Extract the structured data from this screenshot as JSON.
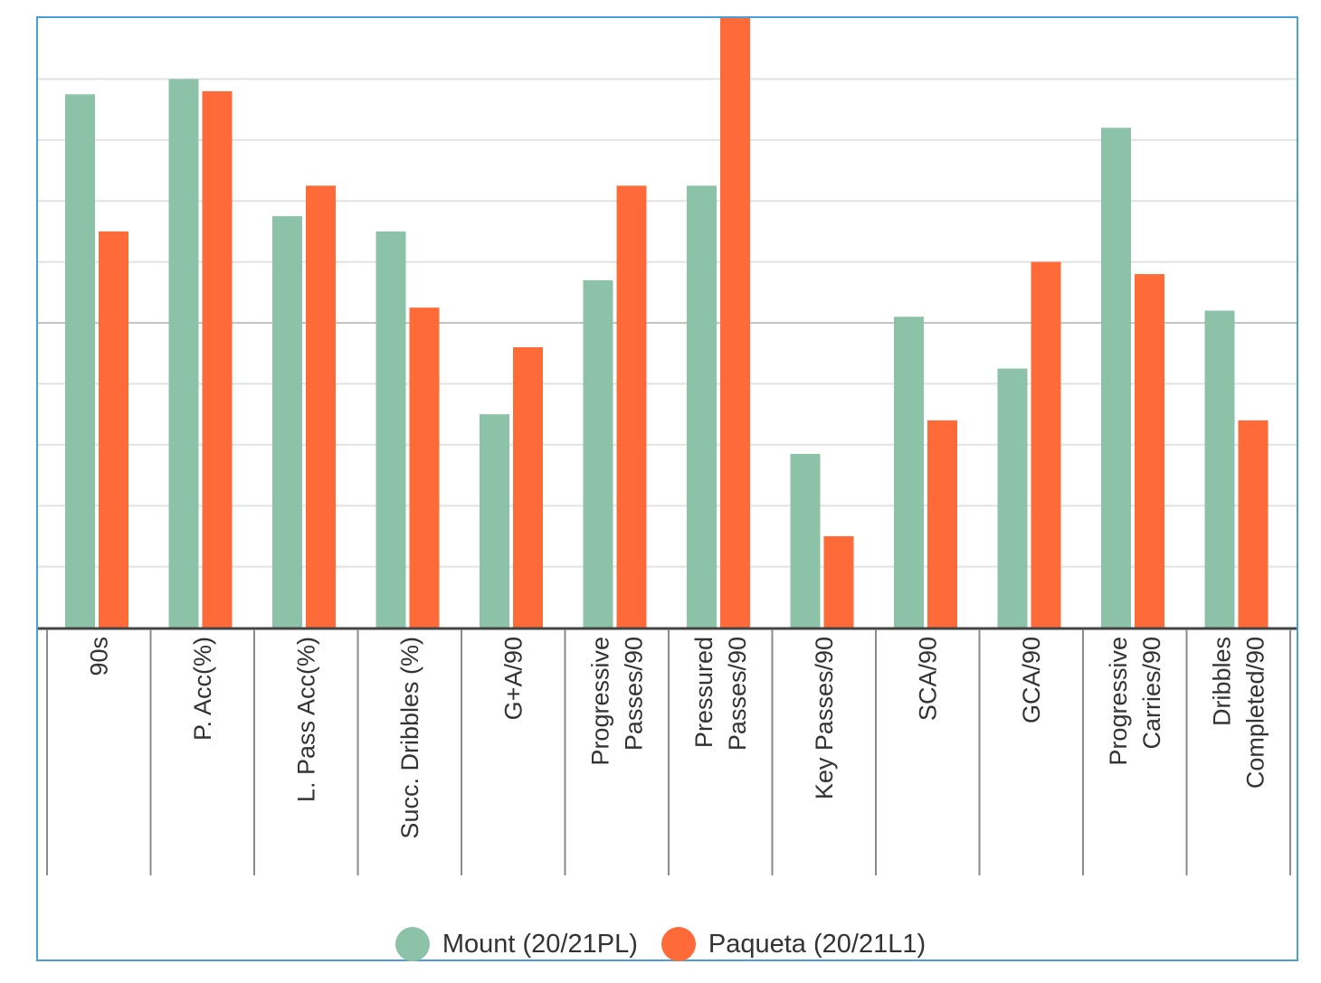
{
  "chart_data": {
    "type": "bar",
    "categories": [
      "90s",
      "P. Acc(%)",
      "L. Pass Acc(%)",
      "Succ. Dribbles (%)",
      "G+A/90",
      "Progressive Passes/90",
      "Pressured Passes/90",
      "Key Passes/90",
      "SCA/90",
      "GCA/90",
      "Progressive Carries/90",
      "Dribbles Completed/90"
    ],
    "category_lines": [
      [
        "90s"
      ],
      [
        "P. Acc(%)"
      ],
      [
        "L. Pass Acc(%)"
      ],
      [
        "Succ. Dribbles (%)"
      ],
      [
        "G+A/90"
      ],
      [
        "Progressive",
        "Passes/90"
      ],
      [
        "Pressured",
        "Passes/90"
      ],
      [
        "Key Passes/90"
      ],
      [
        "SCA/90"
      ],
      [
        "GCA/90"
      ],
      [
        "Progressive",
        "Carries/90"
      ],
      [
        "Dribbles",
        "Completed/90"
      ]
    ],
    "series": [
      {
        "name": "Mount (20/21PL)",
        "color": "#8cc3a8",
        "values": [
          87.5,
          90,
          67.5,
          65,
          35,
          57,
          72.5,
          28.5,
          51,
          42.5,
          82,
          52
        ]
      },
      {
        "name": "Paqueta (20/21L1)",
        "color": "#ff6b38",
        "values": [
          65,
          88,
          72.5,
          52.5,
          46,
          72.5,
          100,
          15,
          34,
          60,
          58,
          34
        ]
      }
    ],
    "ylim": [
      0,
      100
    ],
    "grid": true,
    "legend": "bottom"
  }
}
